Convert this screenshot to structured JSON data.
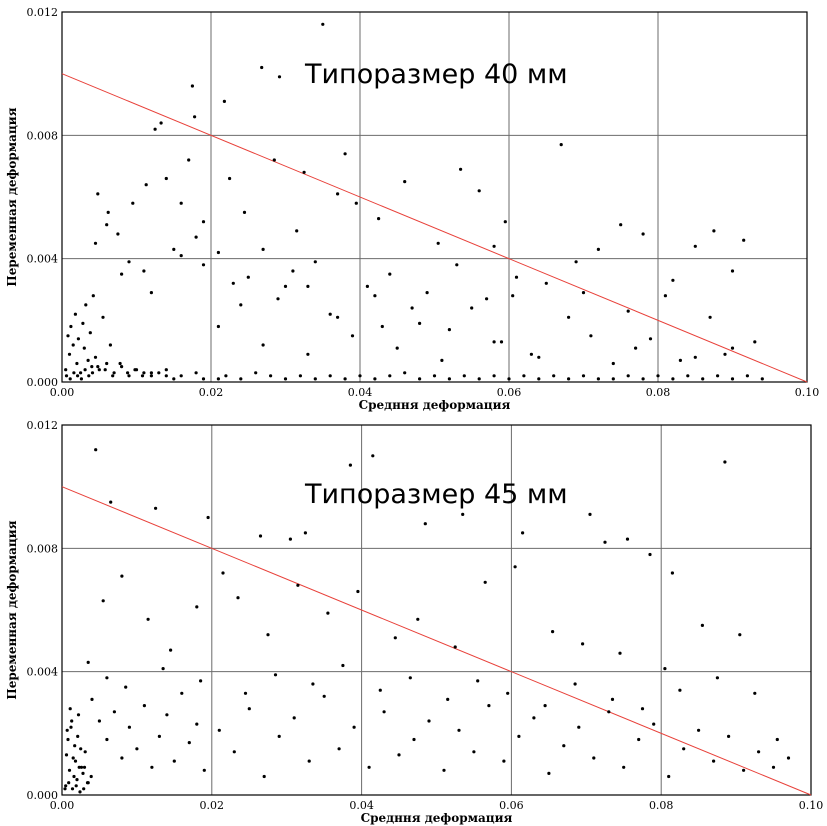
{
  "chart_data": [
    {
      "type": "scatter",
      "annotation": "Типоразмер 40 мм",
      "xlabel": "Средння деформация",
      "ylabel": "Переменная деформация",
      "xlim": [
        0,
        0.1
      ],
      "ylim": [
        0,
        0.012
      ],
      "xticks": [
        "0.00",
        "0.02",
        "0.04",
        "0.06",
        "0.08",
        "0.10"
      ],
      "yticks": [
        "0.000",
        "0.004",
        "0.008",
        "0.012"
      ],
      "grid": true,
      "point_color": "#000000",
      "reference_line": {
        "color": "#e8413a",
        "x": [
          0,
          0.1
        ],
        "y": [
          0.01,
          0
        ]
      },
      "points": {
        "x": [
          0.0005,
          0.001,
          0.0015,
          0.002,
          0.0025,
          0.003,
          0.0035,
          0.004,
          0.0045,
          0.005,
          0.006,
          0.007,
          0.008,
          0.009,
          0.01,
          0.011,
          0.012,
          0.013,
          0.014,
          0.015,
          0.0008,
          0.0012,
          0.0018,
          0.0022,
          0.0028,
          0.0032,
          0.0038,
          0.0042,
          0.0055,
          0.0065,
          0.0006,
          0.0011,
          0.0016,
          0.0021,
          0.0026,
          0.0031,
          0.0036,
          0.0041,
          0.0048,
          0.0058,
          0.0068,
          0.0078,
          0.0088,
          0.0098,
          0.0108,
          0.012,
          0.014,
          0.016,
          0.018,
          0.019,
          0.021,
          0.022,
          0.024,
          0.026,
          0.028,
          0.03,
          0.032,
          0.034,
          0.036,
          0.038,
          0.04,
          0.042,
          0.044,
          0.046,
          0.048,
          0.05,
          0.052,
          0.054,
          0.056,
          0.058,
          0.06,
          0.062,
          0.064,
          0.066,
          0.068,
          0.07,
          0.072,
          0.074,
          0.076,
          0.078,
          0.08,
          0.082,
          0.084,
          0.086,
          0.088,
          0.09,
          0.092,
          0.094,
          0.021,
          0.024,
          0.027,
          0.03,
          0.033,
          0.036,
          0.039,
          0.042,
          0.045,
          0.048,
          0.051,
          0.055,
          0.058,
          0.063,
          0.068,
          0.074,
          0.079,
          0.085,
          0.09,
          0.0125,
          0.0133,
          0.0175,
          0.0178,
          0.0218,
          0.0268,
          0.0292,
          0.035,
          0.038,
          0.0048,
          0.0062,
          0.0075,
          0.0095,
          0.0113,
          0.014,
          0.016,
          0.017,
          0.019,
          0.0225,
          0.0245,
          0.0285,
          0.0315,
          0.0325,
          0.037,
          0.0395,
          0.0425,
          0.046,
          0.0505,
          0.0535,
          0.056,
          0.058,
          0.0595,
          0.0605,
          0.067,
          0.069,
          0.072,
          0.075,
          0.078,
          0.082,
          0.085,
          0.0875,
          0.09,
          0.0915,
          0.008,
          0.012,
          0.016,
          0.019,
          0.023,
          0.027,
          0.031,
          0.034,
          0.041,
          0.044,
          0.049,
          0.053,
          0.057,
          0.061,
          0.065,
          0.07,
          0.076,
          0.081,
          0.087,
          0.093,
          0.0045,
          0.006,
          0.009,
          0.011,
          0.015,
          0.018,
          0.021,
          0.025,
          0.029,
          0.033,
          0.037,
          0.043,
          0.047,
          0.052,
          0.059,
          0.064,
          0.071,
          0.077,
          0.083,
          0.089
        ],
        "y": [
          0.0004,
          0.0009,
          0.0012,
          0.0006,
          0.0003,
          0.0011,
          0.0007,
          0.0005,
          0.0008,
          0.0004,
          0.0006,
          0.0003,
          0.0005,
          0.0002,
          0.0004,
          0.0003,
          0.0002,
          0.0003,
          0.0002,
          0.0001,
          0.0015,
          0.0018,
          0.0022,
          0.0014,
          0.0019,
          0.0025,
          0.0016,
          0.0028,
          0.0021,
          0.0012,
          0.0002,
          0.0001,
          0.0003,
          0.0002,
          0.0001,
          0.0004,
          0.0002,
          0.0003,
          0.0005,
          0.0004,
          0.0002,
          0.0006,
          0.0003,
          0.0004,
          0.0002,
          0.0003,
          0.0004,
          0.0002,
          0.0003,
          0.0001,
          0.0001,
          0.0002,
          0.0001,
          0.0003,
          0.0002,
          0.0001,
          0.0002,
          0.0001,
          0.0002,
          0.0001,
          0.0002,
          0.0001,
          0.0002,
          0.0003,
          0.0001,
          0.0002,
          0.0001,
          0.0002,
          0.0001,
          0.0002,
          0.0001,
          0.0002,
          0.0001,
          0.0002,
          0.0001,
          0.0002,
          0.0001,
          0.0001,
          0.0002,
          0.0001,
          0.0002,
          0.0001,
          0.0002,
          0.0001,
          0.0002,
          0.0001,
          0.0002,
          0.0001,
          0.0018,
          0.0025,
          0.0012,
          0.0031,
          0.0009,
          0.0022,
          0.0015,
          0.0028,
          0.0011,
          0.0019,
          0.0007,
          0.0024,
          0.0013,
          0.0009,
          0.0021,
          0.0006,
          0.0014,
          0.0008,
          0.0011,
          0.0082,
          0.0084,
          0.0096,
          0.0086,
          0.0091,
          0.0102,
          0.0099,
          0.0116,
          0.0074,
          0.0061,
          0.0055,
          0.0048,
          0.0058,
          0.0064,
          0.0066,
          0.0058,
          0.0072,
          0.0052,
          0.0066,
          0.0055,
          0.0072,
          0.0049,
          0.0068,
          0.0061,
          0.0058,
          0.0053,
          0.0065,
          0.0045,
          0.0069,
          0.0062,
          0.0044,
          0.0052,
          0.0028,
          0.0077,
          0.0039,
          0.0043,
          0.0051,
          0.0048,
          0.0033,
          0.0044,
          0.0049,
          0.0036,
          0.0046,
          0.0035,
          0.0029,
          0.0041,
          0.0038,
          0.0032,
          0.0043,
          0.0036,
          0.0039,
          0.0031,
          0.0035,
          0.0029,
          0.0038,
          0.0027,
          0.0034,
          0.0032,
          0.0029,
          0.0023,
          0.0028,
          0.0021,
          0.0013,
          0.0045,
          0.0051,
          0.0039,
          0.0036,
          0.0043,
          0.0047,
          0.0042,
          0.0034,
          0.0027,
          0.0031,
          0.0021,
          0.0018,
          0.0024,
          0.0017,
          0.0013,
          0.0008,
          0.0015,
          0.0011,
          0.0007,
          0.0009
        ]
      }
    },
    {
      "type": "scatter",
      "annotation": "Типоразмер 45 мм",
      "xlabel": "Средння деформация",
      "ylabel": "Переменная деформация",
      "xlim": [
        0,
        0.1
      ],
      "ylim": [
        0,
        0.012
      ],
      "xticks": [
        "0.00",
        "0.02",
        "0.04",
        "0.06",
        "0.08",
        "0.10"
      ],
      "yticks": [
        "0.000",
        "0.004",
        "0.008",
        "0.012"
      ],
      "grid": true,
      "point_color": "#000000",
      "reference_line": {
        "color": "#e8413a",
        "x": [
          0,
          0.1
        ],
        "y": [
          0.01,
          0
        ]
      },
      "points": {
        "x": [
          0.0005,
          0.001,
          0.0015,
          0.002,
          0.0025,
          0.003,
          0.0035,
          0.0008,
          0.0012,
          0.0018,
          0.0022,
          0.0028,
          0.0006,
          0.0011,
          0.0016,
          0.0021,
          0.0026,
          0.0031,
          0.0004,
          0.0009,
          0.0014,
          0.0019,
          0.0024,
          0.0029,
          0.0034,
          0.0039,
          0.0007,
          0.0013,
          0.0017,
          0.0023,
          0.004,
          0.005,
          0.006,
          0.007,
          0.008,
          0.009,
          0.01,
          0.011,
          0.012,
          0.013,
          0.014,
          0.015,
          0.016,
          0.017,
          0.018,
          0.019,
          0.021,
          0.023,
          0.025,
          0.027,
          0.029,
          0.031,
          0.033,
          0.035,
          0.037,
          0.039,
          0.041,
          0.043,
          0.045,
          0.047,
          0.049,
          0.051,
          0.053,
          0.055,
          0.057,
          0.059,
          0.061,
          0.063,
          0.065,
          0.067,
          0.069,
          0.071,
          0.073,
          0.075,
          0.077,
          0.079,
          0.081,
          0.083,
          0.085,
          0.087,
          0.089,
          0.091,
          0.093,
          0.095,
          0.097,
          0.0045,
          0.0065,
          0.0125,
          0.0195,
          0.0215,
          0.0265,
          0.0305,
          0.0325,
          0.0385,
          0.0415,
          0.0485,
          0.0535,
          0.0615,
          0.0705,
          0.0725,
          0.0755,
          0.0785,
          0.0815,
          0.0885,
          0.0035,
          0.0055,
          0.008,
          0.0115,
          0.0145,
          0.018,
          0.0235,
          0.0275,
          0.0315,
          0.0355,
          0.0395,
          0.0445,
          0.0475,
          0.0525,
          0.0565,
          0.0605,
          0.0655,
          0.0695,
          0.0745,
          0.0805,
          0.0855,
          0.0905,
          0.006,
          0.0085,
          0.0135,
          0.0185,
          0.0245,
          0.0285,
          0.0335,
          0.0375,
          0.0425,
          0.0465,
          0.0515,
          0.0555,
          0.0595,
          0.0645,
          0.0685,
          0.0735,
          0.0775,
          0.0825,
          0.0875,
          0.0925,
          0.0955
        ],
        "y": [
          0.0003,
          0.0008,
          0.0012,
          0.0005,
          0.0015,
          0.0009,
          0.0004,
          0.0018,
          0.0022,
          0.0011,
          0.0026,
          0.0007,
          0.0013,
          0.0028,
          0.0006,
          0.0019,
          0.0009,
          0.0014,
          0.0002,
          0.0004,
          0.0002,
          0.0003,
          0.0001,
          0.0002,
          0.0004,
          0.0006,
          0.0021,
          0.0024,
          0.0016,
          0.0009,
          0.0031,
          0.0024,
          0.0018,
          0.0027,
          0.0012,
          0.0022,
          0.0015,
          0.0029,
          0.0009,
          0.0019,
          0.0026,
          0.0011,
          0.0033,
          0.0017,
          0.0023,
          0.0008,
          0.0021,
          0.0014,
          0.0028,
          0.0006,
          0.0019,
          0.0025,
          0.0011,
          0.0032,
          0.0015,
          0.0022,
          0.0009,
          0.0027,
          0.0013,
          0.0018,
          0.0024,
          0.0008,
          0.0021,
          0.0014,
          0.0029,
          0.0011,
          0.0019,
          0.0025,
          0.0007,
          0.0016,
          0.0022,
          0.0012,
          0.0027,
          0.0009,
          0.0018,
          0.0023,
          0.0006,
          0.0015,
          0.0021,
          0.0011,
          0.0019,
          0.0008,
          0.0014,
          0.0009,
          0.0012,
          0.0112,
          0.0095,
          0.0093,
          0.009,
          0.0072,
          0.0084,
          0.0083,
          0.0085,
          0.0107,
          0.011,
          0.0088,
          0.0091,
          0.0085,
          0.0091,
          0.0082,
          0.0083,
          0.0078,
          0.0072,
          0.0108,
          0.0043,
          0.0063,
          0.0071,
          0.0057,
          0.0047,
          0.0061,
          0.0064,
          0.0052,
          0.0068,
          0.0059,
          0.0066,
          0.0051,
          0.0057,
          0.0048,
          0.0069,
          0.0074,
          0.0053,
          0.0049,
          0.0046,
          0.0041,
          0.0055,
          0.0052,
          0.0038,
          0.0035,
          0.0041,
          0.0037,
          0.0033,
          0.0039,
          0.0036,
          0.0042,
          0.0034,
          0.0038,
          0.0031,
          0.0037,
          0.0033,
          0.0029,
          0.0036,
          0.0031,
          0.0028,
          0.0034,
          0.0038,
          0.0033,
          0.0018
        ]
      }
    }
  ]
}
